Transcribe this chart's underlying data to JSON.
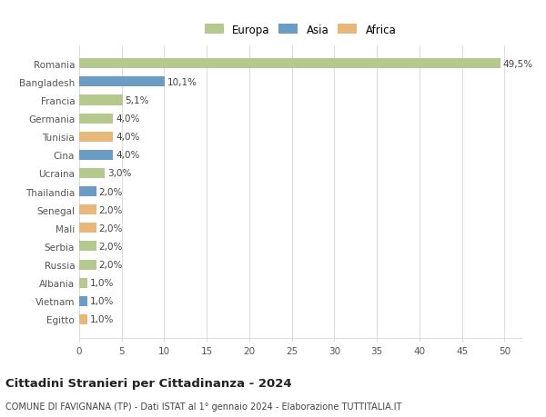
{
  "categories": [
    "Romania",
    "Bangladesh",
    "Francia",
    "Germania",
    "Tunisia",
    "Cina",
    "Ucraina",
    "Thailandia",
    "Senegal",
    "Mali",
    "Serbia",
    "Russia",
    "Albania",
    "Vietnam",
    "Egitto"
  ],
  "values": [
    49.5,
    10.1,
    5.1,
    4.0,
    4.0,
    4.0,
    3.0,
    2.0,
    2.0,
    2.0,
    2.0,
    2.0,
    1.0,
    1.0,
    1.0
  ],
  "labels": [
    "49,5%",
    "10,1%",
    "5,1%",
    "4,0%",
    "4,0%",
    "4,0%",
    "3,0%",
    "2,0%",
    "2,0%",
    "2,0%",
    "2,0%",
    "2,0%",
    "1,0%",
    "1,0%",
    "1,0%"
  ],
  "continents": [
    "Europa",
    "Asia",
    "Europa",
    "Europa",
    "Africa",
    "Asia",
    "Europa",
    "Asia",
    "Africa",
    "Africa",
    "Europa",
    "Europa",
    "Europa",
    "Asia",
    "Africa"
  ],
  "colors": {
    "Europa": "#b5c98e",
    "Asia": "#6b9dc4",
    "Africa": "#e8b87a"
  },
  "xlim": [
    0,
    52
  ],
  "xticks": [
    0,
    5,
    10,
    15,
    20,
    25,
    30,
    35,
    40,
    45,
    50
  ],
  "title": "Cittadini Stranieri per Cittadinanza - 2024",
  "subtitle": "COMUNE DI FAVIGNANA (TP) - Dati ISTAT al 1° gennaio 2024 - Elaborazione TUTTITALIA.IT",
  "background_color": "#ffffff",
  "grid_color": "#dddddd",
  "bar_height": 0.55,
  "label_fontsize": 7.5,
  "tick_label_fontsize": 7.5,
  "title_fontsize": 9.5,
  "subtitle_fontsize": 7.0,
  "legend_fontsize": 8.5
}
